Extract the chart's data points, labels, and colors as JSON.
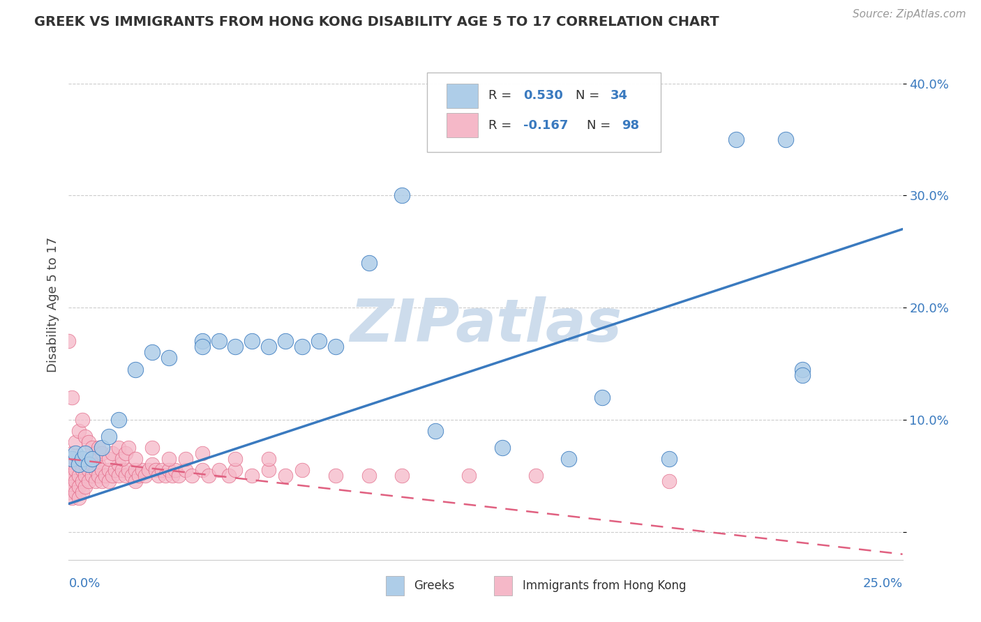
{
  "title": "GREEK VS IMMIGRANTS FROM HONG KONG DISABILITY AGE 5 TO 17 CORRELATION CHART",
  "source": "Source: ZipAtlas.com",
  "ylabel": "Disability Age 5 to 17",
  "xlim": [
    0.0,
    0.25
  ],
  "ylim": [
    -0.025,
    0.43
  ],
  "color_blue": "#aecde8",
  "color_pink": "#f5b8c8",
  "color_blue_line": "#3a7abf",
  "color_pink_line": "#e06080",
  "color_blue_text": "#3a7abf",
  "watermark": "ZIPatlas",
  "watermark_color": "#cddcec",
  "blue_line_x": [
    0.0,
    0.25
  ],
  "blue_line_y": [
    0.025,
    0.27
  ],
  "pink_line_x": [
    0.0,
    0.25
  ],
  "pink_line_y": [
    0.065,
    -0.02
  ],
  "blue_x": [
    0.001,
    0.002,
    0.003,
    0.004,
    0.005,
    0.006,
    0.007,
    0.01,
    0.012,
    0.015,
    0.02,
    0.025,
    0.03,
    0.04,
    0.05,
    0.055,
    0.06,
    0.065,
    0.07,
    0.075,
    0.08,
    0.09,
    0.1,
    0.11,
    0.13,
    0.15,
    0.18,
    0.2,
    0.215,
    0.22,
    0.22,
    0.04,
    0.045,
    0.16
  ],
  "blue_y": [
    0.065,
    0.07,
    0.06,
    0.065,
    0.07,
    0.06,
    0.065,
    0.075,
    0.085,
    0.1,
    0.145,
    0.16,
    0.155,
    0.17,
    0.165,
    0.17,
    0.165,
    0.17,
    0.165,
    0.17,
    0.165,
    0.24,
    0.3,
    0.09,
    0.075,
    0.065,
    0.065,
    0.35,
    0.35,
    0.145,
    0.14,
    0.165,
    0.17,
    0.12
  ],
  "pink_x": [
    0.0,
    0.0,
    0.0,
    0.0,
    0.001,
    0.001,
    0.001,
    0.001,
    0.001,
    0.002,
    0.002,
    0.002,
    0.002,
    0.003,
    0.003,
    0.003,
    0.003,
    0.004,
    0.004,
    0.004,
    0.005,
    0.005,
    0.005,
    0.006,
    0.006,
    0.007,
    0.007,
    0.008,
    0.008,
    0.009,
    0.009,
    0.01,
    0.01,
    0.011,
    0.012,
    0.012,
    0.013,
    0.014,
    0.015,
    0.015,
    0.016,
    0.017,
    0.018,
    0.019,
    0.02,
    0.02,
    0.021,
    0.022,
    0.023,
    0.024,
    0.025,
    0.026,
    0.027,
    0.028,
    0.029,
    0.03,
    0.031,
    0.032,
    0.033,
    0.035,
    0.037,
    0.04,
    0.042,
    0.045,
    0.048,
    0.05,
    0.055,
    0.06,
    0.065,
    0.07,
    0.08,
    0.09,
    0.1,
    0.12,
    0.0,
    0.001,
    0.002,
    0.003,
    0.004,
    0.005,
    0.006,
    0.007,
    0.008,
    0.009,
    0.01,
    0.012,
    0.013,
    0.015,
    0.016,
    0.017,
    0.018,
    0.02,
    0.025,
    0.03,
    0.035,
    0.04,
    0.05,
    0.06,
    0.14,
    0.18
  ],
  "pink_y": [
    0.06,
    0.055,
    0.045,
    0.035,
    0.07,
    0.06,
    0.05,
    0.04,
    0.03,
    0.065,
    0.055,
    0.045,
    0.035,
    0.06,
    0.05,
    0.04,
    0.03,
    0.055,
    0.045,
    0.035,
    0.06,
    0.05,
    0.04,
    0.055,
    0.045,
    0.06,
    0.05,
    0.055,
    0.045,
    0.06,
    0.05,
    0.055,
    0.045,
    0.05,
    0.055,
    0.045,
    0.05,
    0.055,
    0.06,
    0.05,
    0.055,
    0.05,
    0.055,
    0.05,
    0.055,
    0.045,
    0.05,
    0.055,
    0.05,
    0.055,
    0.06,
    0.055,
    0.05,
    0.055,
    0.05,
    0.055,
    0.05,
    0.055,
    0.05,
    0.055,
    0.05,
    0.055,
    0.05,
    0.055,
    0.05,
    0.055,
    0.05,
    0.055,
    0.05,
    0.055,
    0.05,
    0.05,
    0.05,
    0.05,
    0.17,
    0.12,
    0.08,
    0.09,
    0.1,
    0.085,
    0.08,
    0.075,
    0.07,
    0.075,
    0.07,
    0.065,
    0.07,
    0.075,
    0.065,
    0.07,
    0.075,
    0.065,
    0.075,
    0.065,
    0.065,
    0.07,
    0.065,
    0.065,
    0.05,
    0.045
  ]
}
